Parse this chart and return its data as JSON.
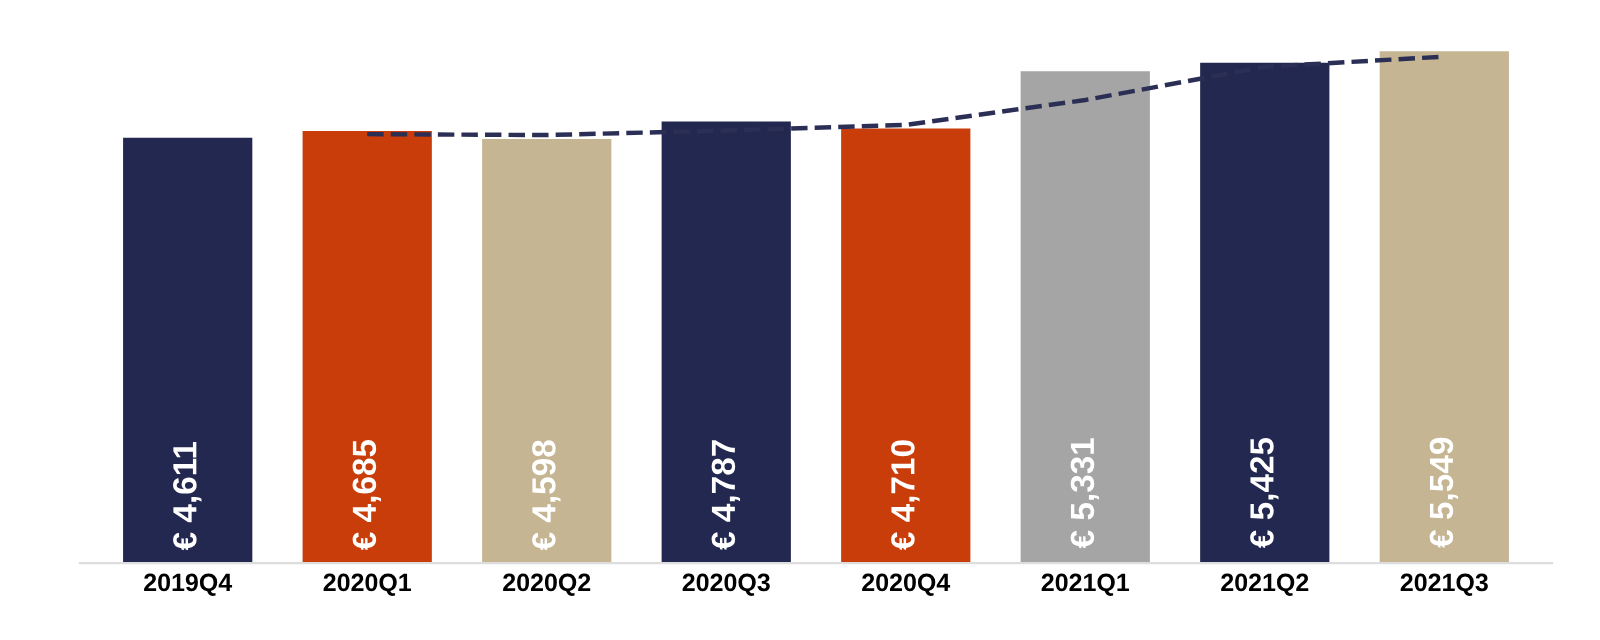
{
  "chart_data": {
    "type": "bar",
    "categories": [
      "2019Q4",
      "2020Q1",
      "2020Q2",
      "2020Q3",
      "2020Q4",
      "2021Q1",
      "2021Q2",
      "2021Q3"
    ],
    "series": [
      {
        "colors": [
          "#22284f",
          "#c93d0a",
          "#c5b592",
          "#22284f",
          "#c93d0a",
          "#a5a5a5",
          "#22284f",
          "#c5b592"
        ],
        "values": [
          4611,
          4685,
          4598,
          4787,
          4710,
          5331,
          5425,
          5549
        ],
        "value_labels": [
          "€ 4,611",
          "€ 4,685",
          "€ 4,598",
          "€ 4,787",
          "€ 4,710",
          "€ 5,331",
          "€ 5,425",
          "€ 5,549"
        ]
      },
      {
        "type": "line",
        "color": "#2b2f55",
        "line_style": "dashed",
        "values": [
          null,
          4650,
          4640,
          4690,
          4750,
          5020,
          5380,
          5490
        ]
      }
    ],
    "grid": false,
    "legend": false,
    "tick_labels": "x",
    "marker": "none"
  }
}
